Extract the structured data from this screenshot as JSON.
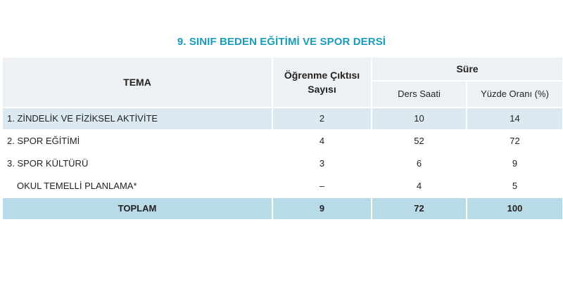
{
  "title": "9. SINIF BEDEN EĞİTİMİ VE SPOR DERSİ",
  "header": {
    "tema": "TEMA",
    "ogrenme_line1": "Öğrenme Çıktısı",
    "ogrenme_line2": "Sayısı",
    "sure": "Süre",
    "ders_saati": "Ders Saati",
    "yuzde_orani": "Yüzde Oranı (%)"
  },
  "rows": [
    {
      "tema": "1. ZİNDELİK VE FİZİKSEL AKTİVİTE",
      "ogrenme": "2",
      "ders_saati": "10",
      "yuzde": "14"
    },
    {
      "tema": "2. SPOR EĞİTİMİ",
      "ogrenme": "4",
      "ders_saati": "52",
      "yuzde": "72"
    },
    {
      "tema": "3. SPOR KÜLTÜRÜ",
      "ogrenme": "3",
      "ders_saati": "6",
      "yuzde": "9"
    },
    {
      "tema": "OKUL TEMELLİ PLANLAMA*",
      "ogrenme": "–",
      "ders_saati": "4",
      "yuzde": "5"
    }
  ],
  "total": {
    "label": "TOPLAM",
    "ogrenme": "9",
    "ders_saati": "72",
    "yuzde": "100"
  }
}
